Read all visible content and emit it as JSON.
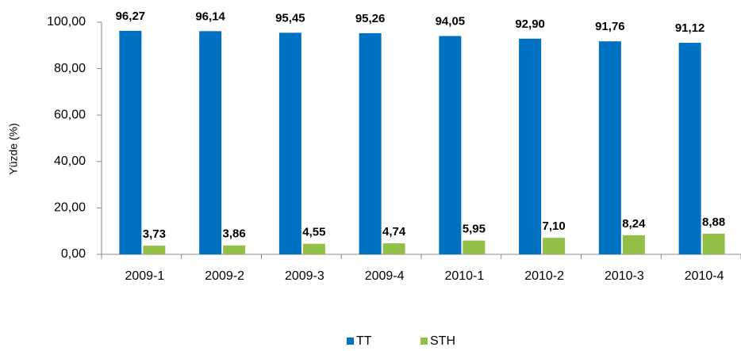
{
  "chart_data": {
    "type": "bar",
    "categories": [
      "2009-1",
      "2009-2",
      "2009-3",
      "2009-4",
      "2010-1",
      "2010-2",
      "2010-3",
      "2010-4"
    ],
    "series": [
      {
        "name": "TT",
        "color": "#0070c0",
        "values": [
          96.27,
          96.14,
          95.45,
          95.26,
          94.05,
          92.9,
          91.76,
          91.12
        ],
        "value_labels": [
          "96,27",
          "96,14",
          "95,45",
          "95,26",
          "94,05",
          "92,90",
          "91,76",
          "91,12"
        ]
      },
      {
        "name": "STH",
        "color": "#92c047",
        "values": [
          3.73,
          3.86,
          4.55,
          4.74,
          5.95,
          7.1,
          8.24,
          8.88
        ],
        "value_labels": [
          "3,73",
          "3,86",
          "4,55",
          "4,74",
          "5,95",
          "7,10",
          "8,24",
          "8,88"
        ]
      }
    ],
    "y_label": "Yüzde (%)",
    "ylim": [
      0,
      100
    ],
    "yticks": [
      {
        "value": 0,
        "label": "0,00"
      },
      {
        "value": 20,
        "label": "20,00"
      },
      {
        "value": 40,
        "label": "40,00"
      },
      {
        "value": 60,
        "label": "60,00"
      },
      {
        "value": 80,
        "label": "80,00"
      },
      {
        "value": 100,
        "label": "100,00"
      }
    ],
    "legend": "bottom"
  }
}
